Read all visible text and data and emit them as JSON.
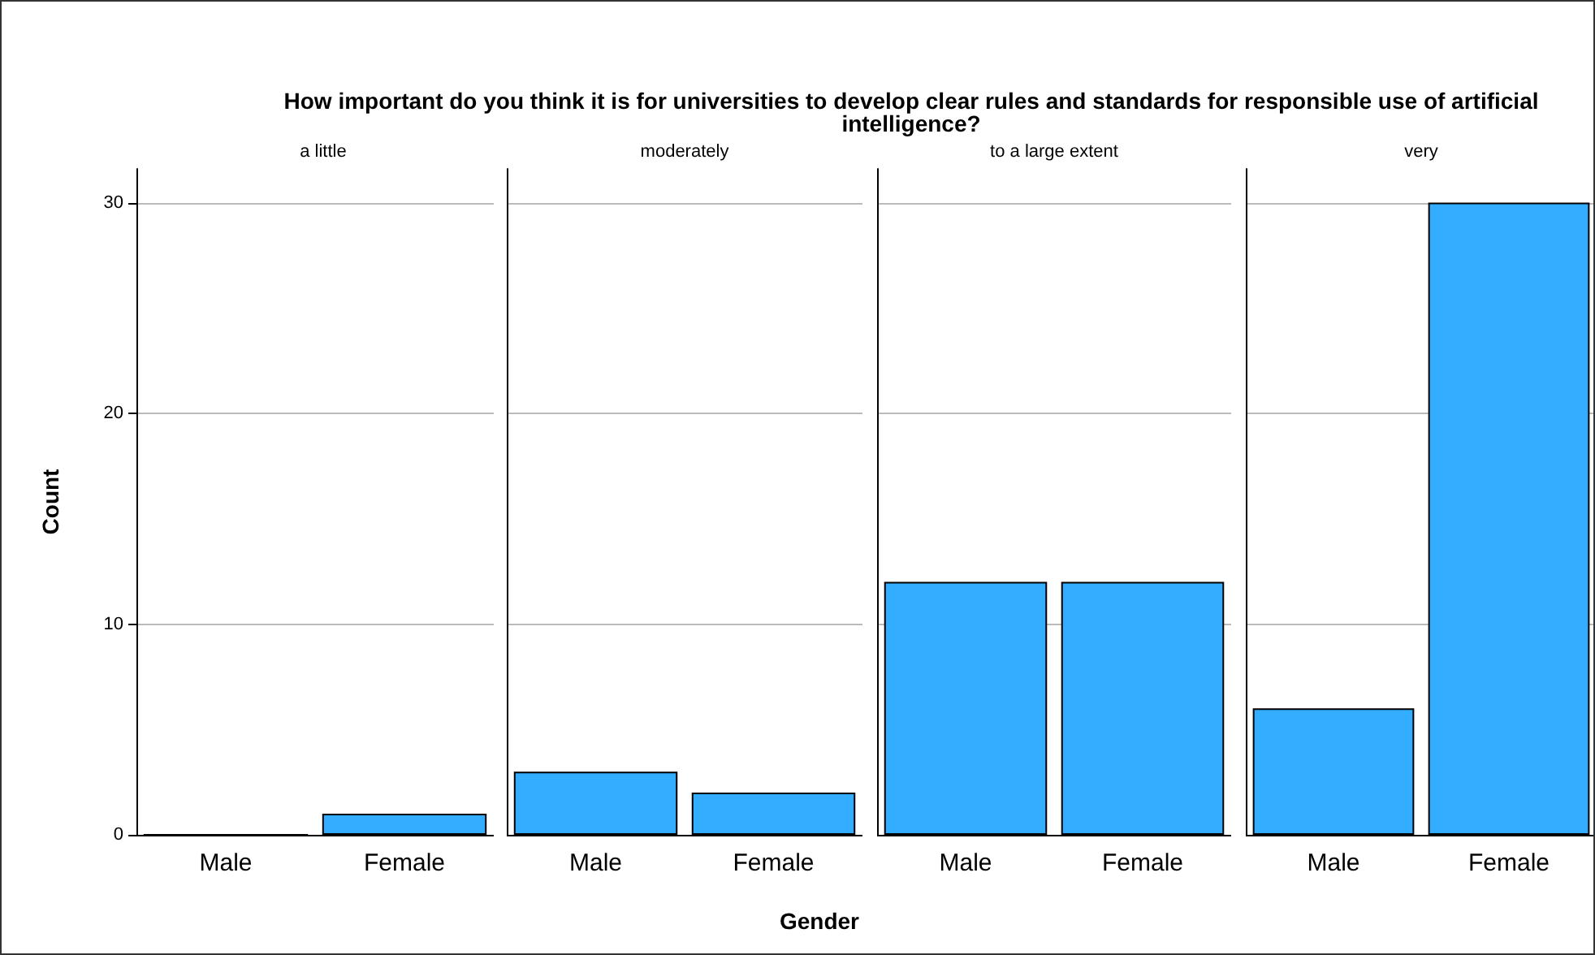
{
  "chart_data": [
    {
      "type": "bar",
      "title": "How important do you think it is for universities to develop clear rules and standards for responsible use of artificial intelligence?",
      "subtitle": "a little",
      "ylabel": "Count",
      "categories": [
        "Male",
        "Female"
      ],
      "values": [
        0,
        1
      ],
      "color": "#33adff",
      "ylim": [
        0,
        31.6
      ],
      "yticks": [
        0,
        10,
        20,
        30
      ],
      "grid": "y"
    },
    {
      "type": "bar",
      "subtitle": "moderately",
      "xlabel": "Gender",
      "categories": [
        "Male",
        "Female"
      ],
      "values": [
        3,
        2
      ],
      "color": "#33adff",
      "ylim": [
        0,
        31.6
      ],
      "yticks": [
        0,
        10,
        20,
        30
      ],
      "grid": "y",
      "tick_labels": "x"
    },
    {
      "type": "bar",
      "subtitle": "to a large extent",
      "categories": [
        "Male",
        "Female"
      ],
      "values": [
        12,
        12
      ],
      "color": "#33adff",
      "ylim": [
        0,
        31.6
      ],
      "yticks": [
        0,
        10,
        20,
        30
      ],
      "grid": "y",
      "tick_labels": "x"
    },
    {
      "type": "bar",
      "subtitle": "very",
      "categories": [
        "Male",
        "Female"
      ],
      "values": [
        6,
        30
      ],
      "color": "#33adff",
      "ylim": [
        0,
        31.6
      ],
      "yticks": [
        0,
        10,
        20,
        30
      ],
      "grid": "y",
      "tick_labels": "x"
    }
  ]
}
